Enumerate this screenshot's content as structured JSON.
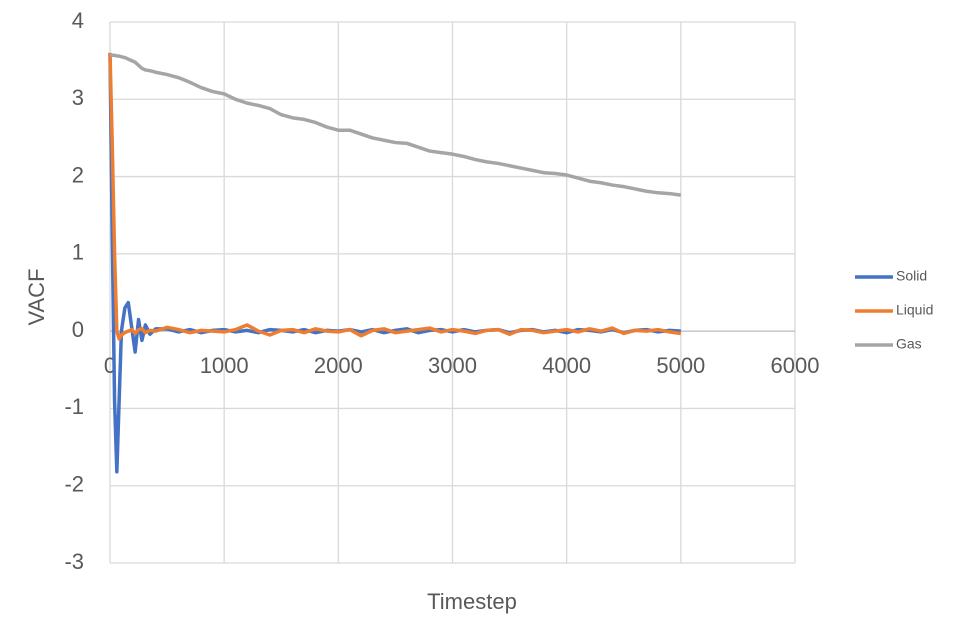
{
  "chart_data": {
    "type": "line",
    "x_label": "Timestep",
    "y_label": "VACF",
    "x": [
      0,
      20,
      40,
      60,
      80,
      100,
      130,
      160,
      190,
      220,
      250,
      280,
      310,
      350,
      400,
      500,
      600,
      700,
      800,
      900,
      1000,
      1100,
      1200,
      1300,
      1400,
      1500,
      1600,
      1700,
      1800,
      1900,
      2000,
      2100,
      2200,
      2300,
      2400,
      2500,
      2600,
      2700,
      2800,
      2900,
      3000,
      3100,
      3200,
      3300,
      3400,
      3500,
      3600,
      3700,
      3800,
      3900,
      4000,
      4100,
      4200,
      4300,
      4400,
      4500,
      4600,
      4700,
      4800,
      4900,
      5000
    ],
    "series": [
      {
        "name": "Solid",
        "color": "#4472c4",
        "values": [
          3.6,
          1.2,
          -0.9,
          -1.82,
          -0.9,
          0,
          0.3,
          0.37,
          0.05,
          -0.27,
          0.15,
          -0.12,
          0.08,
          -0.04,
          0.03,
          0.03,
          -0.01,
          0.02,
          -0.02,
          0.01,
          0.02,
          -0.01,
          0.01,
          -0.02,
          0.02,
          0.01,
          -0.01,
          0.02,
          -0.02,
          0.01,
          0.0,
          0.02,
          -0.01,
          0.02,
          -0.02,
          0.01,
          0.03,
          -0.02,
          0.01,
          0.02,
          -0.01,
          0.02,
          -0.01,
          0.01,
          0.02,
          -0.02,
          0.01,
          0.02,
          -0.01,
          0.01,
          -0.02,
          0.02,
          0.01,
          -0.01,
          0.02,
          -0.02,
          0.01,
          0.02,
          -0.01,
          0.01,
          0.0
        ]
      },
      {
        "name": "Liquid",
        "color": "#ed7d31",
        "values": [
          3.6,
          2.4,
          1.0,
          0,
          -0.1,
          -0.05,
          -0.02,
          0,
          0.02,
          -0.03,
          0.02,
          0.03,
          -0.02,
          0.01,
          0.0,
          0.05,
          0.02,
          -0.02,
          0.01,
          0.0,
          -0.01,
          0.02,
          0.08,
          0.0,
          -0.05,
          0.01,
          0.02,
          -0.02,
          0.03,
          0.0,
          -0.01,
          0.02,
          -0.06,
          0.01,
          0.03,
          -0.02,
          0.0,
          0.02,
          0.04,
          -0.01,
          0.02,
          0.0,
          -0.03,
          0.01,
          0.02,
          -0.04,
          0.02,
          0.01,
          -0.02,
          0.0,
          0.02,
          -0.01,
          0.03,
          0.0,
          0.04,
          -0.03,
          0.01,
          0.0,
          0.02,
          -0.01,
          -0.03
        ]
      },
      {
        "name": "Gas",
        "color": "#a5a5a5",
        "values": [
          3.58,
          3.57,
          3.57,
          3.56,
          3.56,
          3.55,
          3.54,
          3.52,
          3.5,
          3.48,
          3.44,
          3.4,
          3.38,
          3.37,
          3.35,
          3.32,
          3.28,
          3.22,
          3.15,
          3.1,
          3.07,
          3.0,
          2.95,
          2.92,
          2.88,
          2.8,
          2.76,
          2.74,
          2.7,
          2.64,
          2.6,
          2.6,
          2.55,
          2.5,
          2.47,
          2.44,
          2.43,
          2.38,
          2.33,
          2.31,
          2.29,
          2.26,
          2.22,
          2.19,
          2.17,
          2.14,
          2.11,
          2.08,
          2.05,
          2.04,
          2.02,
          1.98,
          1.94,
          1.92,
          1.89,
          1.87,
          1.84,
          1.81,
          1.79,
          1.78,
          1.76
        ]
      }
    ],
    "xlim": [
      0,
      6000
    ],
    "xticks": [
      0,
      1000,
      2000,
      3000,
      4000,
      5000,
      6000
    ],
    "ylim": [
      -3,
      4
    ],
    "yticks": [
      -3,
      -2,
      -1,
      0,
      1,
      2,
      3,
      4
    ],
    "grid": true,
    "legend": "right"
  }
}
